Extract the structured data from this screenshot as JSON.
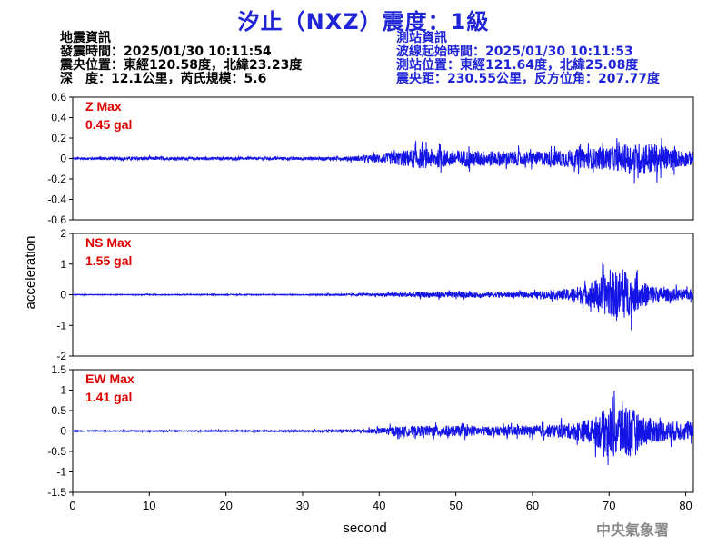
{
  "title": "汐止（NXZ）震度：1級",
  "quake_info": {
    "heading": "地震資訊",
    "time": "發震時間：2025/01/30 10:11:54",
    "epicenter": "震央位置：東經120.58度，北緯23.23度",
    "depth_mag": "深　度：12.1公里，芮氏規模：5.6"
  },
  "station_info": {
    "heading": "測站資訊",
    "wave_start": "波線起始時間：2025/01/30 10:11:53",
    "location": "測站位置：東經121.64度，北緯25.08度",
    "distance": "震央距：230.55公里，反方位角：207.77度"
  },
  "agency": "中央氣象署",
  "colors": {
    "title": "#1f24d6",
    "trace": "#1414e6",
    "max_label": "#e00000",
    "info_right": "#1f24d6"
  },
  "chart_data": [
    {
      "type": "line",
      "component": "Z",
      "max_label": "Z Max",
      "max_value": "0.45 gal",
      "ylim": [
        -0.6,
        0.6
      ],
      "yticks": [
        0.6,
        0.4,
        0.2,
        0,
        -0.2,
        -0.4,
        -0.6
      ],
      "ytick_labels": [
        "0.6",
        "0.4",
        "0.2",
        "0",
        "-0.2",
        "-0.4",
        "-0.6"
      ],
      "xlim": [
        0,
        81
      ],
      "envelope": [
        [
          0,
          0.02
        ],
        [
          8,
          0.03
        ],
        [
          20,
          0.02
        ],
        [
          35,
          0.03
        ],
        [
          38,
          0.05
        ],
        [
          41,
          0.1
        ],
        [
          45,
          0.18
        ],
        [
          50,
          0.15
        ],
        [
          55,
          0.14
        ],
        [
          60,
          0.12
        ],
        [
          65,
          0.16
        ],
        [
          70,
          0.2
        ],
        [
          72,
          0.24
        ],
        [
          75,
          0.3
        ],
        [
          78,
          0.18
        ],
        [
          81,
          0.12
        ]
      ]
    },
    {
      "type": "line",
      "component": "NS",
      "max_label": "NS Max",
      "max_value": "1.55 gal",
      "ylim": [
        -2,
        2
      ],
      "yticks": [
        2,
        1,
        0,
        -1,
        -2
      ],
      "ytick_labels": [
        "2",
        "1",
        "0",
        "-1",
        "-2"
      ],
      "xlim": [
        0,
        81
      ],
      "envelope": [
        [
          0,
          0.02
        ],
        [
          30,
          0.03
        ],
        [
          38,
          0.06
        ],
        [
          42,
          0.12
        ],
        [
          48,
          0.18
        ],
        [
          55,
          0.15
        ],
        [
          60,
          0.16
        ],
        [
          64,
          0.3
        ],
        [
          67,
          0.6
        ],
        [
          69,
          1.1
        ],
        [
          70,
          1.3
        ],
        [
          72,
          1.45
        ],
        [
          74,
          0.8
        ],
        [
          77,
          0.4
        ],
        [
          81,
          0.3
        ]
      ]
    },
    {
      "type": "line",
      "component": "EW",
      "max_label": "EW Max",
      "max_value": "1.41 gal",
      "ylim": [
        -1.5,
        1.5
      ],
      "yticks": [
        1.5,
        1,
        0.5,
        0,
        -0.5,
        -1,
        -1.5
      ],
      "ytick_labels": [
        "1.5",
        "1",
        "0.5",
        "0",
        "-0.5",
        "-1",
        "-1.5"
      ],
      "xlim": [
        0,
        81
      ],
      "envelope": [
        [
          0,
          0.02
        ],
        [
          30,
          0.03
        ],
        [
          38,
          0.08
        ],
        [
          42,
          0.2
        ],
        [
          48,
          0.25
        ],
        [
          55,
          0.2
        ],
        [
          60,
          0.22
        ],
        [
          65,
          0.35
        ],
        [
          68,
          0.6
        ],
        [
          70,
          1.1
        ],
        [
          72,
          1.35
        ],
        [
          74,
          0.7
        ],
        [
          77,
          0.45
        ],
        [
          81,
          0.4
        ]
      ]
    }
  ],
  "x_axis": {
    "label": "second",
    "ticks": [
      0,
      10,
      20,
      30,
      40,
      50,
      60,
      70,
      80
    ],
    "tick_labels": [
      "0",
      "10",
      "20",
      "30",
      "40",
      "50",
      "60",
      "70",
      "80"
    ]
  },
  "y_axis_label": "acceleration"
}
